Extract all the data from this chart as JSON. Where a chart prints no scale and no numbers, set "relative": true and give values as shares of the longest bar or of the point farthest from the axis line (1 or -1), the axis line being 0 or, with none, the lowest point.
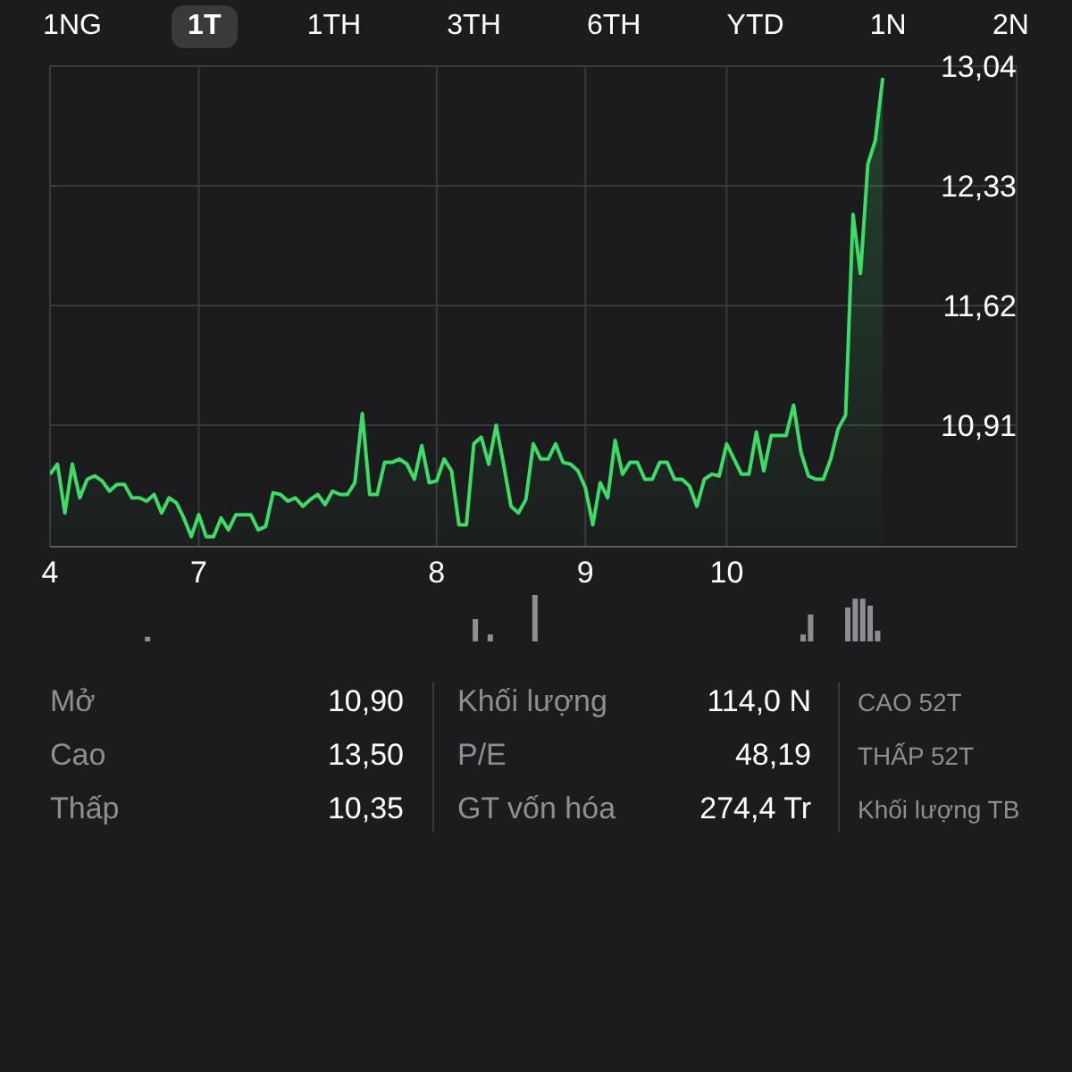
{
  "chart_data": [
    {
      "type": "area",
      "color": "#3ddc67",
      "grid": true,
      "ylim": [
        10.19,
        13.04
      ],
      "yticks": [
        {
          "value": 10.91,
          "label": "10,91"
        },
        {
          "value": 11.62,
          "label": "11,62"
        },
        {
          "value": 12.33,
          "label": "12,33"
        },
        {
          "value": 13.04,
          "label": "13,04"
        }
      ],
      "categories": [
        "4",
        null,
        null,
        null,
        null,
        null,
        null,
        null,
        null,
        null,
        null,
        null,
        null,
        null,
        null,
        null,
        null,
        null,
        null,
        null,
        "7",
        null,
        null,
        null,
        null,
        null,
        null,
        null,
        null,
        null,
        null,
        null,
        null,
        null,
        null,
        null,
        null,
        null,
        null,
        null,
        null,
        null,
        null,
        null,
        null,
        null,
        null,
        null,
        null,
        null,
        null,
        null,
        "8",
        null,
        null,
        null,
        null,
        null,
        null,
        null,
        null,
        null,
        null,
        null,
        null,
        null,
        null,
        null,
        null,
        null,
        null,
        null,
        "9",
        null,
        null,
        null,
        null,
        null,
        null,
        null,
        null,
        null,
        null,
        null,
        null,
        null,
        null,
        null,
        null,
        null,
        null,
        "10",
        null,
        null,
        null,
        null,
        null,
        null,
        null,
        null,
        null,
        null,
        null,
        null,
        null,
        null,
        null,
        null,
        null,
        null,
        null,
        null,
        null,
        null,
        null,
        null,
        null,
        null,
        null,
        null,
        null,
        null,
        null,
        null,
        null,
        null,
        null,
        null,
        null,
        null,
        null
      ],
      "values": [
        10.62,
        10.68,
        10.39,
        10.68,
        10.48,
        10.59,
        10.61,
        10.58,
        10.52,
        10.56,
        10.56,
        10.48,
        10.48,
        10.46,
        10.5,
        10.39,
        10.48,
        10.45,
        10.36,
        10.25,
        10.38,
        10.25,
        10.25,
        10.36,
        10.29,
        10.38,
        10.38,
        10.38,
        10.29,
        10.31,
        10.51,
        10.5,
        10.46,
        10.48,
        10.43,
        10.47,
        10.5,
        10.44,
        10.52,
        10.5,
        10.5,
        10.57,
        10.98,
        10.5,
        10.5,
        10.69,
        10.69,
        10.71,
        10.68,
        10.59,
        10.79,
        10.57,
        10.58,
        10.71,
        10.64,
        10.32,
        10.32,
        10.8,
        10.84,
        10.68,
        10.91,
        10.68,
        10.43,
        10.39,
        10.47,
        10.8,
        10.71,
        10.71,
        10.8,
        10.69,
        10.68,
        10.64,
        10.54,
        10.32,
        10.57,
        10.48,
        10.82,
        10.62,
        10.69,
        10.69,
        10.59,
        10.59,
        10.69,
        10.69,
        10.59,
        10.59,
        10.55,
        10.43,
        10.59,
        10.62,
        10.61,
        10.8,
        10.71,
        10.62,
        10.62,
        10.87,
        10.64,
        10.85,
        10.85,
        10.85,
        11.03,
        10.75,
        10.61,
        10.59,
        10.59,
        10.71,
        10.89,
        10.97,
        12.16,
        11.81,
        12.46,
        12.6,
        12.97,
        null,
        null,
        null,
        null,
        null,
        null,
        null,
        null,
        null,
        null,
        null,
        null,
        null,
        null,
        null,
        null,
        null,
        null
      ],
      "annotations": [
        "1NG",
        "1T",
        "1TH",
        "3TH",
        "6TH",
        "YTD",
        "1N",
        "2N",
        "Mở",
        "10,90",
        "Cao",
        "13,50",
        "Thấp",
        "10,35",
        "Khối lượng",
        "114,0 N",
        "P/E",
        "48,19",
        "GT vốn hóa",
        "274,4 Tr",
        "CAO 52T",
        "THẤP 52T",
        "Khối lượng TB"
      ]
    },
    {
      "type": "bar",
      "relative": true,
      "color": "#8e8e93",
      "categories": [
        null,
        null,
        null,
        null,
        null,
        null,
        null,
        null,
        null,
        null,
        null,
        null,
        null,
        null,
        null,
        null,
        null,
        null,
        null,
        null,
        null,
        null,
        null,
        null,
        null,
        null,
        null,
        null,
        null,
        null,
        null,
        null,
        null,
        null,
        null,
        null,
        null,
        null,
        null,
        null,
        null,
        null,
        null,
        null,
        null,
        null,
        null,
        null,
        null,
        null,
        null,
        null,
        null,
        null,
        null,
        null,
        null,
        null,
        null,
        null,
        null,
        null,
        null,
        null,
        null,
        null,
        null,
        null,
        null,
        null,
        null,
        null,
        null,
        null,
        null,
        null,
        null,
        null,
        null,
        null,
        null,
        null,
        null,
        null,
        null,
        null,
        null,
        null,
        null,
        null,
        null,
        null,
        null,
        null,
        null,
        null,
        null,
        null,
        null,
        null,
        null,
        null,
        null,
        null,
        null,
        null,
        null,
        null,
        null,
        null,
        null,
        null,
        null,
        null,
        null,
        null,
        null,
        null,
        null,
        null,
        null,
        null,
        null,
        null,
        null,
        null,
        null,
        null,
        null,
        null,
        null
      ],
      "values": [
        null,
        null,
        null,
        null,
        null,
        null,
        null,
        null,
        null,
        null,
        null,
        null,
        null,
        0.1,
        null,
        null,
        null,
        null,
        null,
        null,
        null,
        null,
        null,
        null,
        null,
        null,
        null,
        null,
        null,
        null,
        null,
        null,
        null,
        null,
        null,
        null,
        null,
        null,
        null,
        null,
        null,
        null,
        null,
        null,
        null,
        null,
        null,
        null,
        null,
        null,
        null,
        null,
        null,
        null,
        null,
        null,
        null,
        0.48,
        null,
        0.15,
        null,
        null,
        null,
        null,
        null,
        1,
        null,
        null,
        null,
        null,
        null,
        null,
        null,
        null,
        null,
        null,
        null,
        null,
        null,
        null,
        null,
        null,
        null,
        null,
        null,
        null,
        null,
        null,
        null,
        null,
        null,
        null,
        null,
        null,
        null,
        null,
        null,
        null,
        null,
        null,
        null,
        0.15,
        0.58,
        null,
        null,
        null,
        null,
        0.73,
        0.92,
        0.92,
        0.77,
        0.23,
        null,
        null,
        null,
        null,
        null,
        null,
        null,
        null,
        null,
        null,
        null,
        null,
        null,
        null,
        null,
        null,
        null,
        null,
        null
      ]
    }
  ]
}
